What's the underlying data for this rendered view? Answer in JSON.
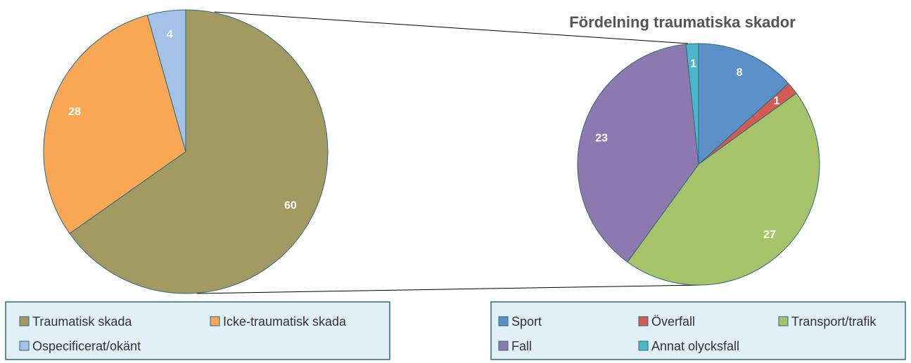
{
  "chart_data": [
    {
      "type": "pie",
      "categories": [
        "Traumatisk skada",
        "Icke-traumatisk skada",
        "Ospecificerat/okänt"
      ],
      "values": [
        60,
        28,
        4
      ],
      "colors": [
        "#a39a63",
        "#f9a755",
        "#a4c2e8"
      ]
    },
    {
      "type": "pie",
      "title": "Fördelning traumatiska skador",
      "categories": [
        "Sport",
        "Överfall",
        "Transport/trafik",
        "Fall",
        "Annat olycksfall"
      ],
      "values": [
        8,
        1,
        27,
        23,
        1
      ],
      "colors": [
        "#5b8fc8",
        "#d35b55",
        "#a6c36a",
        "#8e78b0",
        "#4bb5c9"
      ]
    }
  ]
}
